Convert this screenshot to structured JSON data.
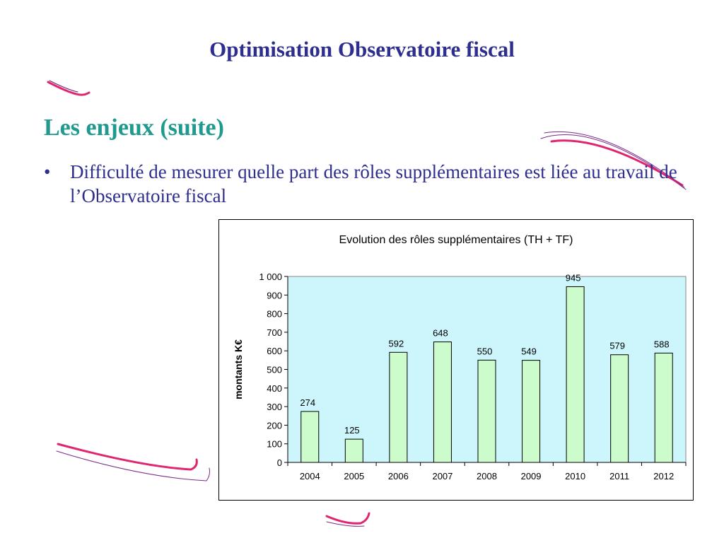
{
  "slide": {
    "title": "Optimisation Observatoire fiscal",
    "subtitle": "Les enjeux (suite)",
    "bullet_symbol": "•",
    "bullet_text": "Difficulté de mesurer quelle part des rôles supplémentaires est liée au travail de l’Observatoire fiscal"
  },
  "colors": {
    "title": "#2e2e8f",
    "subtitle": "#1f9a8e",
    "plot_background": "#ccf6fb",
    "bar_fill": "#ccfccc",
    "decoration": "#e0266e"
  },
  "chart_data": {
    "type": "bar",
    "title": "Evolution des rôles supplémentaires (TH + TF)",
    "xlabel": "",
    "ylabel": "montants K€",
    "categories": [
      "2004",
      "2005",
      "2006",
      "2007",
      "2008",
      "2009",
      "2010",
      "2011",
      "2012"
    ],
    "values": [
      274,
      125,
      592,
      648,
      550,
      549,
      945,
      579,
      588
    ],
    "data_labels": [
      "274",
      "125",
      "592",
      "648",
      "550",
      "549",
      "945",
      "579",
      "588"
    ],
    "ylim": [
      0,
      1000
    ],
    "y_ticks": [
      0,
      100,
      200,
      300,
      400,
      500,
      600,
      700,
      800,
      900,
      1000
    ],
    "y_tick_labels": [
      "0",
      "100",
      "200",
      "300",
      "400",
      "500",
      "600",
      "700",
      "800",
      "900",
      "1 000"
    ],
    "grid": false,
    "legend": "none"
  }
}
